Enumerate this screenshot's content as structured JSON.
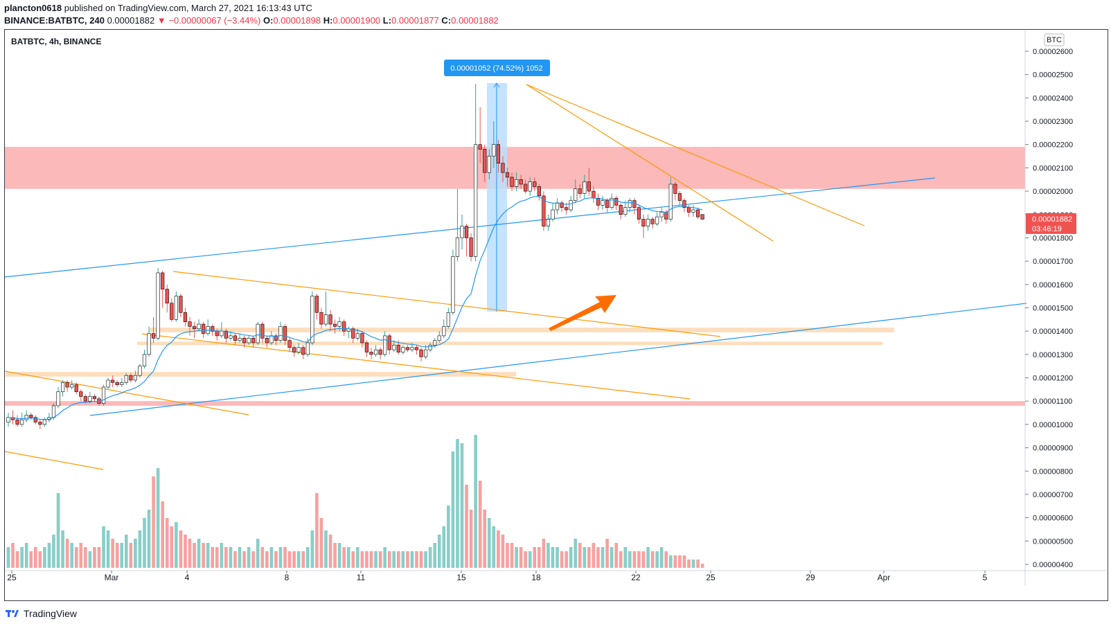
{
  "header": {
    "author": "plancton0618",
    "published_text": "published on TradingView.com, March 27, 2021 16:13:43 UTC",
    "symbol_full": "BINANCE:BATBTC, 240",
    "last_price": "0.00001882",
    "change": "−0.00000067 (−3.44%)",
    "o_label": "O:",
    "o_value": "0.00001898",
    "h_label": "H:",
    "h_value": "0.00001900",
    "l_label": "L:",
    "l_value": "0.00001877",
    "c_label": "C:",
    "c_value": "0.00001882"
  },
  "footer": {
    "brand": "TradingView"
  },
  "chart_data": {
    "type": "candlestick",
    "title": "BATBTC, 4h, BINANCE",
    "currency_button": "BTC",
    "y_ticks": [
      "0.00002600",
      "0.00002500",
      "0.00002400",
      "0.00002300",
      "0.00002200",
      "0.00002100",
      "0.00002000",
      "0.00001900",
      "0.00001800",
      "0.00001700",
      "0.00001600",
      "0.00001500",
      "0.00001400",
      "0.00001300",
      "0.00001200",
      "0.00001100",
      "0.00001000",
      "0.00000900",
      "0.00000800",
      "0.00000700",
      "0.00000600",
      "0.00000500",
      "0.00000400"
    ],
    "x_ticks": [
      "25",
      "Mar",
      "4",
      "8",
      "11",
      "15",
      "18",
      "22",
      "25",
      "29",
      "Apr",
      "5"
    ],
    "price_label": {
      "value": "0.00001882",
      "countdown": "03:46:19"
    },
    "measure_label": "0.00001052 (74.52%) 1052",
    "colors": {
      "up": "#26a69a",
      "down": "#ef5350",
      "ma": "#2196f3",
      "trend": "#ff9800",
      "resistance_zone": "#fbb1b1",
      "support_zone": "#fdd8b0"
    },
    "zones": [
      {
        "kind": "resistance",
        "from": 2.01e-05,
        "to": 2.19e-05
      },
      {
        "kind": "resistance",
        "from": 1.08e-05,
        "to": 1.1e-05
      },
      {
        "kind": "support",
        "from": 1.395e-05,
        "to": 1.415e-05
      },
      {
        "kind": "support",
        "from": 1.34e-05,
        "to": 1.355e-05
      },
      {
        "kind": "support",
        "from": 1.205e-05,
        "to": 1.225e-05
      }
    ],
    "candles": [
      [
        1.01,
        1.03,
        1.05,
        0.99
      ],
      [
        1.03,
        1.02,
        1.06,
        1.0
      ],
      [
        1.02,
        1.0,
        1.04,
        0.99
      ],
      [
        1.0,
        1.02,
        1.05,
        0.99
      ],
      [
        1.02,
        1.04,
        1.06,
        1.01
      ],
      [
        1.04,
        1.03,
        1.05,
        1.02
      ],
      [
        1.03,
        1.01,
        1.04,
        1.0
      ],
      [
        1.01,
        1.0,
        1.02,
        0.98
      ],
      [
        1.0,
        1.02,
        1.03,
        0.99
      ],
      [
        1.02,
        1.03,
        1.05,
        1.01
      ],
      [
        1.03,
        1.08,
        1.09,
        1.02
      ],
      [
        1.08,
        1.14,
        1.16,
        1.07
      ],
      [
        1.14,
        1.18,
        1.19,
        1.12
      ],
      [
        1.18,
        1.16,
        1.19,
        1.14
      ],
      [
        1.16,
        1.17,
        1.19,
        1.15
      ],
      [
        1.17,
        1.14,
        1.18,
        1.13
      ],
      [
        1.14,
        1.12,
        1.15,
        1.1
      ],
      [
        1.12,
        1.1,
        1.13,
        1.09
      ],
      [
        1.1,
        1.12,
        1.14,
        1.09
      ],
      [
        1.12,
        1.11,
        1.13,
        1.1
      ],
      [
        1.11,
        1.09,
        1.12,
        1.08
      ],
      [
        1.09,
        1.16,
        1.17,
        1.08
      ],
      [
        1.16,
        1.19,
        1.2,
        1.15
      ],
      [
        1.19,
        1.18,
        1.21,
        1.16
      ],
      [
        1.18,
        1.17,
        1.19,
        1.16
      ],
      [
        1.17,
        1.18,
        1.2,
        1.16
      ],
      [
        1.18,
        1.21,
        1.22,
        1.17
      ],
      [
        1.21,
        1.19,
        1.22,
        1.18
      ],
      [
        1.19,
        1.21,
        1.23,
        1.18
      ],
      [
        1.21,
        1.25,
        1.26,
        1.2
      ],
      [
        1.25,
        1.3,
        1.32,
        1.24
      ],
      [
        1.3,
        1.39,
        1.42,
        1.29
      ],
      [
        1.39,
        1.37,
        1.46,
        1.35
      ],
      [
        1.37,
        1.65,
        1.67,
        1.36
      ],
      [
        1.65,
        1.58,
        1.66,
        1.5
      ],
      [
        1.58,
        1.52,
        1.6,
        1.48
      ],
      [
        1.52,
        1.45,
        1.54,
        1.44
      ],
      [
        1.45,
        1.55,
        1.57,
        1.44
      ],
      [
        1.55,
        1.48,
        1.56,
        1.46
      ],
      [
        1.48,
        1.44,
        1.5,
        1.42
      ],
      [
        1.44,
        1.42,
        1.46,
        1.38
      ],
      [
        1.42,
        1.41,
        1.44,
        1.37
      ],
      [
        1.41,
        1.43,
        1.45,
        1.4
      ],
      [
        1.43,
        1.39,
        1.44,
        1.37
      ],
      [
        1.39,
        1.42,
        1.45,
        1.38
      ],
      [
        1.42,
        1.4,
        1.43,
        1.38
      ],
      [
        1.4,
        1.38,
        1.41,
        1.36
      ],
      [
        1.38,
        1.4,
        1.44,
        1.37
      ],
      [
        1.4,
        1.37,
        1.41,
        1.35
      ],
      [
        1.37,
        1.38,
        1.4,
        1.36
      ],
      [
        1.38,
        1.36,
        1.39,
        1.34
      ],
      [
        1.36,
        1.37,
        1.39,
        1.35
      ],
      [
        1.37,
        1.35,
        1.38,
        1.33
      ],
      [
        1.35,
        1.37,
        1.38,
        1.34
      ],
      [
        1.37,
        1.35,
        1.38,
        1.33
      ],
      [
        1.35,
        1.43,
        1.44,
        1.34
      ],
      [
        1.43,
        1.37,
        1.44,
        1.35
      ],
      [
        1.37,
        1.35,
        1.38,
        1.33
      ],
      [
        1.35,
        1.38,
        1.4,
        1.34
      ],
      [
        1.38,
        1.36,
        1.39,
        1.34
      ],
      [
        1.36,
        1.42,
        1.44,
        1.35
      ],
      [
        1.42,
        1.36,
        1.43,
        1.34
      ],
      [
        1.36,
        1.33,
        1.37,
        1.31
      ],
      [
        1.33,
        1.31,
        1.34,
        1.29
      ],
      [
        1.31,
        1.33,
        1.35,
        1.3
      ],
      [
        1.33,
        1.3,
        1.34,
        1.28
      ],
      [
        1.3,
        1.35,
        1.37,
        1.29
      ],
      [
        1.35,
        1.55,
        1.57,
        1.34
      ],
      [
        1.55,
        1.48,
        1.56,
        1.45
      ],
      [
        1.48,
        1.43,
        1.5,
        1.41
      ],
      [
        1.43,
        1.47,
        1.57,
        1.42
      ],
      [
        1.47,
        1.43,
        1.49,
        1.4
      ],
      [
        1.43,
        1.42,
        1.45,
        1.39
      ],
      [
        1.42,
        1.44,
        1.46,
        1.4
      ],
      [
        1.44,
        1.4,
        1.45,
        1.38
      ],
      [
        1.4,
        1.41,
        1.42,
        1.37
      ],
      [
        1.41,
        1.37,
        1.42,
        1.35
      ],
      [
        1.37,
        1.39,
        1.41,
        1.36
      ],
      [
        1.39,
        1.35,
        1.4,
        1.33
      ],
      [
        1.35,
        1.31,
        1.36,
        1.29
      ],
      [
        1.31,
        1.3,
        1.33,
        1.28
      ],
      [
        1.3,
        1.32,
        1.34,
        1.29
      ],
      [
        1.32,
        1.3,
        1.33,
        1.28
      ],
      [
        1.3,
        1.38,
        1.4,
        1.29
      ],
      [
        1.38,
        1.32,
        1.39,
        1.3
      ],
      [
        1.32,
        1.34,
        1.36,
        1.31
      ],
      [
        1.34,
        1.31,
        1.36,
        1.3
      ],
      [
        1.31,
        1.33,
        1.34,
        1.3
      ],
      [
        1.33,
        1.32,
        1.34,
        1.31
      ],
      [
        1.32,
        1.33,
        1.35,
        1.31
      ],
      [
        1.33,
        1.32,
        1.34,
        1.3
      ],
      [
        1.32,
        1.29,
        1.33,
        1.27
      ],
      [
        1.29,
        1.32,
        1.34,
        1.28
      ],
      [
        1.32,
        1.34,
        1.35,
        1.31
      ],
      [
        1.34,
        1.36,
        1.37,
        1.33
      ],
      [
        1.36,
        1.38,
        1.4,
        1.35
      ],
      [
        1.38,
        1.42,
        1.45,
        1.37
      ],
      [
        1.42,
        1.48,
        1.5,
        1.41
      ],
      [
        1.48,
        1.72,
        1.75,
        1.47
      ],
      [
        1.72,
        1.8,
        2.01,
        1.7
      ],
      [
        1.8,
        1.85,
        1.9,
        1.75
      ],
      [
        1.85,
        1.8,
        1.86,
        1.72
      ],
      [
        1.8,
        1.72,
        1.82,
        1.7
      ],
      [
        1.72,
        2.2,
        2.46,
        1.7
      ],
      [
        2.2,
        2.18,
        2.36,
        2.12
      ],
      [
        2.18,
        2.08,
        2.2,
        2.04
      ],
      [
        2.08,
        2.15,
        2.18,
        2.05
      ],
      [
        2.15,
        2.2,
        2.3,
        2.1
      ],
      [
        2.2,
        2.12,
        2.22,
        2.08
      ],
      [
        2.12,
        2.08,
        2.15,
        2.04
      ],
      [
        2.08,
        2.06,
        2.1,
        2.02
      ],
      [
        2.06,
        2.02,
        2.08,
        2.0
      ],
      [
        2.02,
        2.05,
        2.08,
        2.0
      ],
      [
        2.05,
        2.03,
        2.07,
        2.01
      ],
      [
        2.03,
        2.0,
        2.05,
        1.99
      ],
      [
        2.0,
        2.04,
        2.06,
        1.98
      ],
      [
        2.04,
        2.02,
        2.06,
        2.0
      ],
      [
        2.02,
        1.98,
        2.03,
        1.96
      ],
      [
        1.98,
        1.85,
        2.0,
        1.83
      ],
      [
        1.85,
        1.88,
        1.9,
        1.83
      ],
      [
        1.88,
        1.92,
        1.95,
        1.87
      ],
      [
        1.92,
        1.95,
        1.97,
        1.9
      ],
      [
        1.95,
        1.93,
        1.96,
        1.91
      ],
      [
        1.93,
        1.92,
        1.95,
        1.9
      ],
      [
        1.92,
        1.96,
        1.98,
        1.91
      ],
      [
        1.96,
        2.01,
        2.05,
        1.95
      ],
      [
        2.01,
        1.99,
        2.03,
        1.97
      ],
      [
        1.99,
        2.04,
        2.07,
        1.97
      ],
      [
        2.04,
        2.0,
        2.1,
        1.98
      ],
      [
        2.0,
        1.97,
        2.02,
        1.95
      ],
      [
        1.97,
        1.94,
        1.99,
        1.92
      ],
      [
        1.94,
        1.96,
        1.98,
        1.92
      ],
      [
        1.96,
        1.93,
        1.97,
        1.91
      ],
      [
        1.93,
        1.97,
        1.99,
        1.92
      ],
      [
        1.97,
        1.94,
        1.98,
        1.92
      ],
      [
        1.94,
        1.9,
        1.95,
        1.88
      ],
      [
        1.9,
        1.93,
        1.96,
        1.89
      ],
      [
        1.93,
        1.96,
        1.97,
        1.91
      ],
      [
        1.96,
        1.93,
        1.97,
        1.9
      ],
      [
        1.93,
        1.88,
        1.94,
        1.86
      ],
      [
        1.88,
        1.85,
        1.9,
        1.8
      ],
      [
        1.85,
        1.88,
        1.9,
        1.83
      ],
      [
        1.88,
        1.86,
        1.89,
        1.84
      ],
      [
        1.86,
        1.89,
        1.91,
        1.85
      ],
      [
        1.89,
        1.91,
        1.93,
        1.87
      ],
      [
        1.91,
        1.88,
        1.92,
        1.86
      ],
      [
        1.88,
        2.03,
        2.06,
        1.87
      ],
      [
        2.03,
        1.99,
        2.04,
        1.96
      ],
      [
        1.99,
        1.96,
        2.0,
        1.94
      ],
      [
        1.96,
        1.93,
        1.97,
        1.91
      ],
      [
        1.93,
        1.91,
        1.94,
        1.89
      ],
      [
        1.91,
        1.92,
        1.94,
        1.89
      ],
      [
        1.92,
        1.89,
        1.93,
        1.88
      ],
      [
        1.9,
        1.88,
        1.9,
        1.877
      ]
    ],
    "candle_scale": "values are in units of 1e-5 BTC (open, close, high, low)",
    "volume": [
      5,
      6,
      4,
      5,
      6,
      4,
      5,
      4,
      5,
      6,
      8,
      18,
      9,
      7,
      6,
      5,
      6,
      5,
      4,
      5,
      5,
      10,
      9,
      7,
      6,
      6,
      8,
      6,
      7,
      9,
      12,
      14,
      22,
      24,
      16,
      12,
      10,
      11,
      9,
      8,
      7,
      6,
      7,
      6,
      6,
      5,
      5,
      6,
      5,
      5,
      4,
      5,
      4,
      5,
      4,
      7,
      5,
      4,
      5,
      4,
      5,
      5,
      4,
      4,
      4,
      4,
      5,
      9,
      18,
      12,
      9,
      8,
      6,
      6,
      5,
      5,
      4,
      5,
      4,
      4,
      4,
      4,
      4,
      5,
      4,
      4,
      4,
      4,
      4,
      4,
      4,
      4,
      4,
      5,
      6,
      8,
      10,
      15,
      28,
      31,
      30,
      20,
      14,
      32,
      21,
      14,
      12,
      10,
      9,
      8,
      6,
      6,
      5,
      5,
      4,
      4,
      5,
      5,
      7,
      6,
      5,
      5,
      4,
      4,
      5,
      7,
      6,
      5,
      5,
      6,
      5,
      5,
      7,
      5,
      6,
      4,
      5,
      4,
      4,
      4,
      4,
      5,
      4,
      4,
      5,
      4,
      3,
      3,
      3,
      3,
      2,
      2,
      2,
      1
    ]
  }
}
